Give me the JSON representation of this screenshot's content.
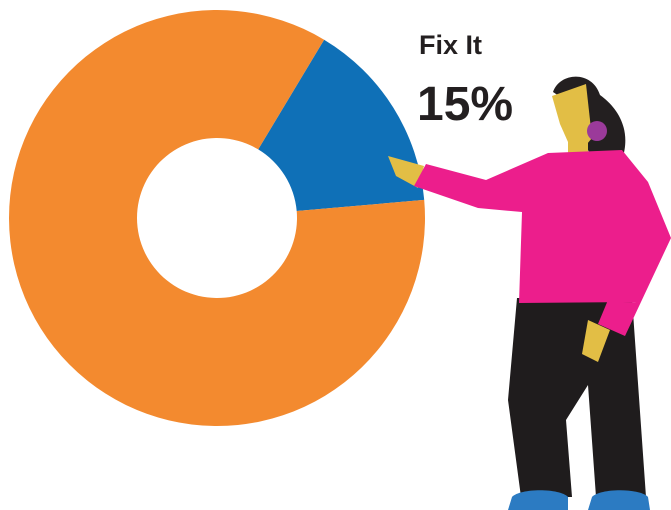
{
  "chart_data": {
    "type": "donut",
    "categories": [
      "Fix It",
      null
    ],
    "values": [
      15,
      85
    ],
    "value_labels": [
      "15%",
      null
    ],
    "colors": [
      "#0F70B7",
      "#F38A2F"
    ]
  }
}
